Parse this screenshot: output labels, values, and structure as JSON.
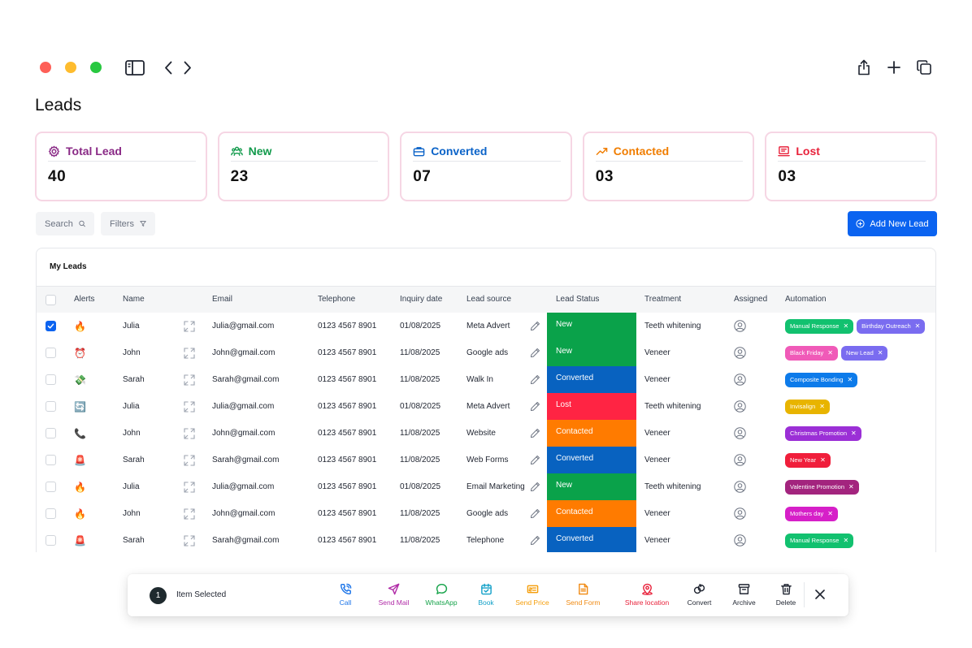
{
  "page": {
    "title": "Leads"
  },
  "stats": [
    {
      "label": "Total Lead",
      "value": "40",
      "color": "#8a2a86",
      "icon": "gear-icon"
    },
    {
      "label": "New",
      "value": "23",
      "color": "#119a4b",
      "icon": "users-icon"
    },
    {
      "label": "Converted",
      "value": "07",
      "color": "#0b63c8",
      "icon": "briefcase-icon"
    },
    {
      "label": "Contacted",
      "value": "03",
      "color": "#f07d00",
      "icon": "trend-up-icon"
    },
    {
      "label": "Lost",
      "value": "03",
      "color": "#e8213a",
      "icon": "inbox-icon"
    }
  ],
  "toolbar": {
    "search_label": "Search",
    "filters_label": "Filters",
    "add_label": "Add New Lead"
  },
  "table": {
    "title": "My Leads",
    "columns": {
      "alerts": "Alerts",
      "name": "Name",
      "email": "Email",
      "telephone": "Telephone",
      "inquiry_date": "Inquiry date",
      "lead_source": "Lead source",
      "lead_status": "Lead Status",
      "treatment": "Treatment",
      "assigned": "Assigned",
      "automation": "Automation"
    },
    "rows": [
      {
        "checked": true,
        "alert": "🔥",
        "name": "Julia",
        "email": "Julia@gmail.com",
        "telephone": "0123 4567 8901",
        "date": "01/08/2025",
        "source": "Meta Advert",
        "status": "New",
        "status_color": "#0aa24a",
        "treatment": "Teeth whitening",
        "tags": [
          {
            "label": "Manual Response",
            "color": "#12c16f"
          },
          {
            "label": "Birthday Outreach",
            "color": "#7a6cf0"
          }
        ]
      },
      {
        "checked": false,
        "alert": "⏰",
        "name": "John",
        "email": "John@gmail.com",
        "telephone": "0123 4567 8901",
        "date": "11/08/2025",
        "source": "Google ads",
        "status": "New",
        "status_color": "#0aa24a",
        "treatment": "Veneer",
        "tags": [
          {
            "label": "Black Friday",
            "color": "#f05ab8"
          },
          {
            "label": "New Lead",
            "color": "#7a6cf0"
          }
        ]
      },
      {
        "checked": false,
        "alert": "💸",
        "name": "Sarah",
        "email": "Sarah@gmail.com",
        "telephone": "0123 4567 8901",
        "date": "11/08/2025",
        "source": "Walk In",
        "status": "Converted",
        "status_color": "#0862c0",
        "treatment": "Veneer",
        "tags": [
          {
            "label": "Composite Bonding",
            "color": "#0d7bea"
          }
        ]
      },
      {
        "checked": false,
        "alert": "🔄",
        "name": "Julia",
        "email": "Julia@gmail.com",
        "telephone": "0123 4567 8901",
        "date": "01/08/2025",
        "source": "Meta Advert",
        "status": "Lost",
        "status_color": "#ff2443",
        "treatment": "Teeth whitening",
        "tags": [
          {
            "label": "Invisalign",
            "color": "#e8b400"
          }
        ]
      },
      {
        "checked": false,
        "alert": "📞",
        "name": "John",
        "email": "John@gmail.com",
        "telephone": "0123 4567 8901",
        "date": "11/08/2025",
        "source": "Website",
        "status": "Contacted",
        "status_color": "#ff7b00",
        "treatment": "Veneer",
        "tags": [
          {
            "label": "Christmas Promotion",
            "color": "#9b2fd6"
          }
        ]
      },
      {
        "checked": false,
        "alert": "🚨",
        "name": "Sarah",
        "email": "Sarah@gmail.com",
        "telephone": "0123 4567 8901",
        "date": "11/08/2025",
        "source": "Web Forms",
        "status": "Converted",
        "status_color": "#0862c0",
        "treatment": "Veneer",
        "tags": [
          {
            "label": "New Year",
            "color": "#f01e3b"
          }
        ]
      },
      {
        "checked": false,
        "alert": "🔥",
        "name": "Julia",
        "email": "Julia@gmail.com",
        "telephone": "0123 4567 8901",
        "date": "01/08/2025",
        "source": "Email Marketing",
        "status": "New",
        "status_color": "#0aa24a",
        "treatment": "Teeth whitening",
        "tags": [
          {
            "label": "Valentine Promotion",
            "color": "#a3247e"
          }
        ]
      },
      {
        "checked": false,
        "alert": "🔥",
        "name": "John",
        "email": "John@gmail.com",
        "telephone": "0123 4567 8901",
        "date": "11/08/2025",
        "source": "Google ads",
        "status": "Contacted",
        "status_color": "#ff7b00",
        "treatment": "Veneer",
        "tags": [
          {
            "label": "Mothers day",
            "color": "#d61fc8"
          }
        ]
      },
      {
        "checked": false,
        "alert": "🚨",
        "name": "Sarah",
        "email": "Sarah@gmail.com",
        "telephone": "0123 4567 8901",
        "date": "11/08/2025",
        "source": "Telephone",
        "status": "Converted",
        "status_color": "#0862c0",
        "treatment": "Veneer",
        "tags": [
          {
            "label": "Manual Response",
            "color": "#12c16f"
          }
        ]
      }
    ]
  },
  "actionbar": {
    "count": "1",
    "label": "Item Selected",
    "actions": [
      {
        "label": "Call",
        "color": "#1a73e8",
        "icon": "phone-icon"
      },
      {
        "label": "Send Mail",
        "color": "#b02aa6",
        "icon": "send-icon"
      },
      {
        "label": "WhatsApp",
        "color": "#16a34a",
        "icon": "chat-icon"
      },
      {
        "label": "Book",
        "color": "#12a0c8",
        "icon": "calendar-icon"
      },
      {
        "label": "Send Price",
        "color": "#f59e0b",
        "icon": "price-tag-icon"
      },
      {
        "label": "Send Form",
        "color": "#f08a12",
        "icon": "form-icon"
      },
      {
        "label": "Share location",
        "color": "#e8213a",
        "icon": "location-icon"
      },
      {
        "label": "Convert",
        "color": "#1f2430",
        "icon": "convert-icon"
      },
      {
        "label": "Archive",
        "color": "#1f2430",
        "icon": "archive-icon"
      },
      {
        "label": "Delete",
        "color": "#1f2430",
        "icon": "trash-icon"
      }
    ]
  }
}
